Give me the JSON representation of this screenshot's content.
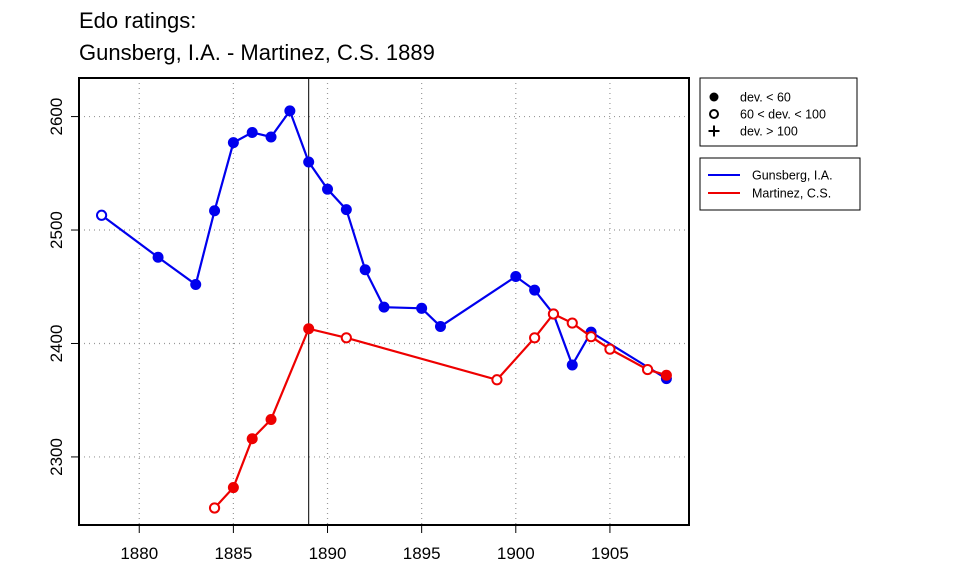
{
  "chart_data": {
    "type": "line",
    "title_lines": [
      "Edo ratings:",
      "Gunsberg, I.A. - Martinez, C.S. 1889"
    ],
    "xlabel": "",
    "ylabel": "",
    "xlim": [
      1876.8,
      1909.2
    ],
    "ylim": [
      2240,
      2634
    ],
    "x_ticks": [
      1880,
      1885,
      1890,
      1895,
      1900,
      1905
    ],
    "y_ticks": [
      2300,
      2400,
      2500,
      2600
    ],
    "grid": true,
    "marker_line": 1889,
    "legend_markers": [
      {
        "symbol": "filled-circle",
        "label": "dev. < 60"
      },
      {
        "symbol": "open-circle",
        "label": "60 < dev. < 100"
      },
      {
        "symbol": "plus",
        "label": "dev. > 100"
      }
    ],
    "legend_position": "right",
    "series": [
      {
        "name": "Gunsberg, I.A.",
        "color": "#0000ee",
        "points": [
          {
            "x": 1878,
            "y": 2513,
            "marker": "open"
          },
          {
            "x": 1881,
            "y": 2476,
            "marker": "filled"
          },
          {
            "x": 1883,
            "y": 2452,
            "marker": "filled"
          },
          {
            "x": 1884,
            "y": 2517,
            "marker": "filled"
          },
          {
            "x": 1885,
            "y": 2577,
            "marker": "filled"
          },
          {
            "x": 1886,
            "y": 2586,
            "marker": "filled"
          },
          {
            "x": 1887,
            "y": 2582,
            "marker": "filled"
          },
          {
            "x": 1888,
            "y": 2605,
            "marker": "filled"
          },
          {
            "x": 1889,
            "y": 2560,
            "marker": "filled"
          },
          {
            "x": 1890,
            "y": 2536,
            "marker": "filled"
          },
          {
            "x": 1891,
            "y": 2518,
            "marker": "filled"
          },
          {
            "x": 1892,
            "y": 2465,
            "marker": "filled"
          },
          {
            "x": 1893,
            "y": 2432,
            "marker": "filled"
          },
          {
            "x": 1895,
            "y": 2431,
            "marker": "filled"
          },
          {
            "x": 1896,
            "y": 2415,
            "marker": "filled"
          },
          {
            "x": 1900,
            "y": 2459,
            "marker": "filled"
          },
          {
            "x": 1901,
            "y": 2447,
            "marker": "filled"
          },
          {
            "x": 1902,
            "y": 2426,
            "marker": "filled"
          },
          {
            "x": 1903,
            "y": 2381,
            "marker": "filled"
          },
          {
            "x": 1904,
            "y": 2410,
            "marker": "filled"
          },
          {
            "x": 1908,
            "y": 2369,
            "marker": "filled"
          }
        ]
      },
      {
        "name": "Martinez, C.S.",
        "color": "#ee0000",
        "points": [
          {
            "x": 1884,
            "y": 2255,
            "marker": "open"
          },
          {
            "x": 1885,
            "y": 2273,
            "marker": "filled"
          },
          {
            "x": 1886,
            "y": 2316,
            "marker": "filled"
          },
          {
            "x": 1887,
            "y": 2333,
            "marker": "filled"
          },
          {
            "x": 1889,
            "y": 2413,
            "marker": "filled"
          },
          {
            "x": 1891,
            "y": 2405,
            "marker": "open"
          },
          {
            "x": 1899,
            "y": 2368,
            "marker": "open"
          },
          {
            "x": 1901,
            "y": 2405,
            "marker": "open"
          },
          {
            "x": 1902,
            "y": 2426,
            "marker": "open"
          },
          {
            "x": 1903,
            "y": 2418,
            "marker": "open"
          },
          {
            "x": 1904,
            "y": 2406,
            "marker": "open"
          },
          {
            "x": 1905,
            "y": 2395,
            "marker": "open"
          },
          {
            "x": 1907,
            "y": 2377,
            "marker": "open"
          },
          {
            "x": 1908,
            "y": 2372,
            "marker": "filled"
          }
        ]
      }
    ]
  }
}
